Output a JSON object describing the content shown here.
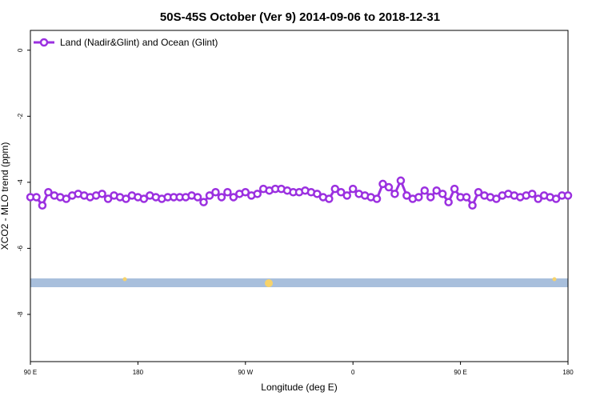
{
  "chart_data": {
    "type": "line",
    "title": "50S-45S October (Ver 9)   2014-09-06 to 2018-12-31",
    "xlabel": "Longitude (deg E)",
    "ylabel": "XCO2 - MLO trend (ppm)",
    "x": [
      90,
      95,
      100,
      105,
      110,
      115,
      120,
      125,
      130,
      135,
      140,
      145,
      150,
      155,
      160,
      165,
      170,
      175,
      180,
      185,
      190,
      195,
      200,
      205,
      210,
      215,
      220,
      225,
      230,
      235,
      240,
      245,
      250,
      255,
      260,
      265,
      270,
      275,
      280,
      285,
      290,
      295,
      300,
      305,
      310,
      315,
      320,
      325,
      330,
      335,
      340,
      345,
      350,
      355,
      360,
      365,
      370,
      375,
      380,
      385,
      390,
      395,
      400,
      405,
      410,
      415,
      420,
      425,
      430,
      435,
      440,
      445,
      450,
      455,
      460,
      465,
      470,
      475,
      480,
      485,
      490,
      495,
      500,
      505,
      510,
      515,
      520,
      525,
      530,
      535,
      540
    ],
    "series": [
      {
        "name": "Land (Nadir&Glint) and Ocean (Glint)",
        "color": "#9b30e0",
        "values": [
          -4.45,
          -4.45,
          -4.7,
          -4.3,
          -4.4,
          -4.45,
          -4.5,
          -4.4,
          -4.35,
          -4.4,
          -4.45,
          -4.4,
          -4.35,
          -4.5,
          -4.4,
          -4.45,
          -4.5,
          -4.4,
          -4.45,
          -4.5,
          -4.4,
          -4.45,
          -4.5,
          -4.45,
          -4.45,
          -4.45,
          -4.45,
          -4.4,
          -4.45,
          -4.6,
          -4.4,
          -4.3,
          -4.45,
          -4.3,
          -4.45,
          -4.35,
          -4.3,
          -4.4,
          -4.35,
          -4.2,
          -4.25,
          -4.2,
          -4.2,
          -4.25,
          -4.3,
          -4.3,
          -4.25,
          -4.3,
          -4.35,
          -4.45,
          -4.5,
          -4.2,
          -4.3,
          -4.4,
          -4.2,
          -4.35,
          -4.4,
          -4.45,
          -4.5,
          -4.05,
          -4.15,
          -4.35,
          -3.95,
          -4.4,
          -4.5,
          -4.45,
          -4.25,
          -4.45,
          -4.25,
          -4.35,
          -4.6,
          -4.2,
          -4.45,
          -4.45,
          -4.7,
          -4.3,
          -4.4,
          -4.45,
          -4.5,
          -4.4,
          -4.35,
          -4.4,
          -4.45,
          -4.4,
          -4.35,
          -4.5,
          -4.4,
          -4.45,
          -4.5,
          -4.4,
          -4.4
        ]
      }
    ],
    "xlim": [
      90,
      540
    ],
    "xticks": [
      {
        "value": 90,
        "label": "90 E"
      },
      {
        "value": 180,
        "label": "180"
      },
      {
        "value": 270,
        "label": "90 W"
      },
      {
        "value": 360,
        "label": "0"
      },
      {
        "value": 450,
        "label": "90 E"
      },
      {
        "value": 540,
        "label": "180"
      }
    ],
    "ylim": [
      -9.43,
      0.6
    ],
    "yticks": [
      0,
      -2,
      -4,
      -6,
      -8
    ],
    "legend": "top-left"
  }
}
